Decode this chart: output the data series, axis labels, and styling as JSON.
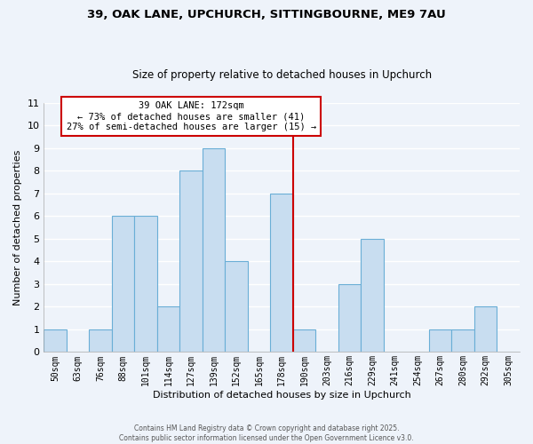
{
  "title_line1": "39, OAK LANE, UPCHURCH, SITTINGBOURNE, ME9 7AU",
  "title_line2": "Size of property relative to detached houses in Upchurch",
  "xlabel": "Distribution of detached houses by size in Upchurch",
  "ylabel": "Number of detached properties",
  "bin_labels": [
    "50sqm",
    "63sqm",
    "76sqm",
    "88sqm",
    "101sqm",
    "114sqm",
    "127sqm",
    "139sqm",
    "152sqm",
    "165sqm",
    "178sqm",
    "190sqm",
    "203sqm",
    "216sqm",
    "229sqm",
    "241sqm",
    "254sqm",
    "267sqm",
    "280sqm",
    "292sqm",
    "305sqm"
  ],
  "bar_heights": [
    1,
    0,
    1,
    6,
    6,
    2,
    8,
    9,
    4,
    0,
    7,
    1,
    0,
    3,
    5,
    0,
    0,
    1,
    1,
    2,
    0
  ],
  "bar_color": "#c8ddf0",
  "bar_edge_color": "#6aaed6",
  "vline_x_index": 10.5,
  "vline_color": "#cc0000",
  "annotation_title": "39 OAK LANE: 172sqm",
  "annotation_line2": "← 73% of detached houses are smaller (41)",
  "annotation_line3": "27% of semi-detached houses are larger (15) →",
  "annotation_box_color": "#ffffff",
  "annotation_box_edge": "#cc0000",
  "ylim": [
    0,
    11
  ],
  "yticks": [
    0,
    1,
    2,
    3,
    4,
    5,
    6,
    7,
    8,
    9,
    10,
    11
  ],
  "footer_line1": "Contains HM Land Registry data © Crown copyright and database right 2025.",
  "footer_line2": "Contains public sector information licensed under the Open Government Licence v3.0.",
  "background_color": "#eef3fa",
  "grid_color": "#ffffff"
}
